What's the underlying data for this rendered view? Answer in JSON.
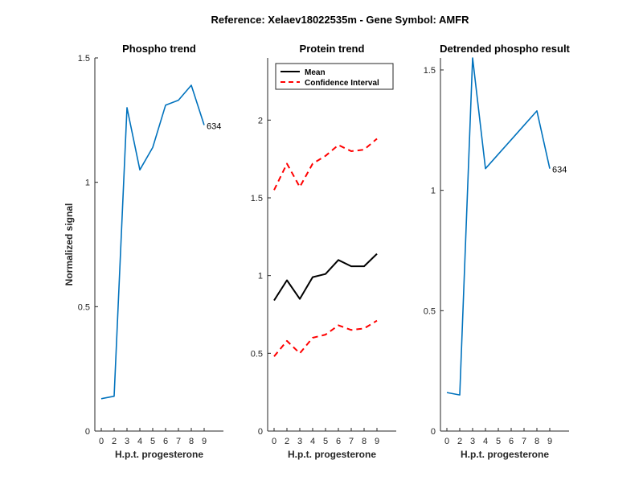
{
  "figure": {
    "title": "Reference:  Xelaev18022535m - Gene Symbol:  AMFR",
    "ylabel": "Normalized signal"
  },
  "chart_data": [
    {
      "type": "line",
      "title": "Phospho trend",
      "xlabel": "H.p.t. progesterone",
      "ylabel": "Normalized signal",
      "xlim": [
        -0.5,
        9.5
      ],
      "ylim": [
        0,
        1.5
      ],
      "xticks": [
        0,
        2,
        3,
        4,
        5,
        6,
        7,
        8,
        9
      ],
      "xtick_positions": [
        0,
        1,
        2,
        3,
        4,
        5,
        6,
        7,
        8
      ],
      "yticks": [
        0,
        0.5,
        1,
        1.5
      ],
      "ytick_labels": [
        "0",
        "0.5",
        "1",
        "1.5"
      ],
      "series": [
        {
          "color": "#0072BD",
          "dash": "solid",
          "x": [
            0,
            1,
            2,
            3,
            4,
            5,
            6,
            7,
            8
          ],
          "y": [
            0.13,
            0.14,
            1.3,
            1.05,
            1.14,
            1.31,
            1.33,
            1.39,
            1.23
          ]
        }
      ],
      "annotations": [
        {
          "text": "634",
          "x": 8,
          "y": 1.23
        }
      ]
    },
    {
      "type": "line",
      "title": "Protein trend",
      "xlabel": "H.p.t. progesterone",
      "ylabel": "",
      "xlim": [
        -0.5,
        9.5
      ],
      "ylim": [
        0,
        2.4
      ],
      "xticks": [
        0,
        2,
        3,
        4,
        5,
        6,
        7,
        8,
        9
      ],
      "xtick_positions": [
        0,
        1,
        2,
        3,
        4,
        5,
        6,
        7,
        8
      ],
      "yticks": [
        0,
        0.5,
        1,
        1.5,
        2
      ],
      "ytick_labels": [
        "0",
        "0.5",
        "1",
        "1.5",
        "2"
      ],
      "legend": {
        "placement": "top-left",
        "entries": [
          "Mean",
          "Confidence Interval"
        ]
      },
      "series": [
        {
          "name": "Mean",
          "color": "#000000",
          "dash": "solid",
          "x": [
            0,
            1,
            2,
            3,
            4,
            5,
            6,
            7,
            8
          ],
          "y": [
            0.84,
            0.97,
            0.85,
            0.99,
            1.01,
            1.1,
            1.06,
            1.06,
            1.14
          ]
        },
        {
          "name": "Confidence Interval",
          "color": "#ff0000",
          "dash": "dashed",
          "x": [
            0,
            1,
            2,
            3,
            4,
            5,
            6,
            7,
            8
          ],
          "y": [
            1.55,
            1.72,
            1.57,
            1.72,
            1.77,
            1.84,
            1.8,
            1.81,
            1.88
          ]
        },
        {
          "color": "#ff0000",
          "dash": "dashed",
          "x": [
            0,
            1,
            2,
            3,
            4,
            5,
            6,
            7,
            8
          ],
          "y": [
            0.48,
            0.58,
            0.5,
            0.6,
            0.62,
            0.68,
            0.65,
            0.66,
            0.71
          ]
        }
      ]
    },
    {
      "type": "line",
      "title": "Detrended phospho result",
      "xlabel": "H.p.t. progesterone",
      "ylabel": "",
      "xlim": [
        -0.5,
        9.5
      ],
      "ylim": [
        0,
        1.55
      ],
      "xticks": [
        0,
        2,
        3,
        4,
        5,
        6,
        7,
        8,
        9
      ],
      "xtick_positions": [
        0,
        1,
        2,
        3,
        4,
        5,
        6,
        7,
        8
      ],
      "yticks": [
        0,
        0.5,
        1,
        1.5
      ],
      "ytick_labels": [
        "0",
        "0.5",
        "1",
        "1.5"
      ],
      "series": [
        {
          "color": "#0072BD",
          "dash": "solid",
          "x": [
            0,
            1,
            2,
            3,
            4,
            5,
            6,
            7,
            8
          ],
          "y": [
            0.16,
            0.15,
            1.55,
            1.09,
            1.15,
            1.21,
            1.27,
            1.33,
            1.09
          ]
        }
      ],
      "annotations": [
        {
          "text": "634",
          "x": 8,
          "y": 1.09
        }
      ]
    }
  ]
}
